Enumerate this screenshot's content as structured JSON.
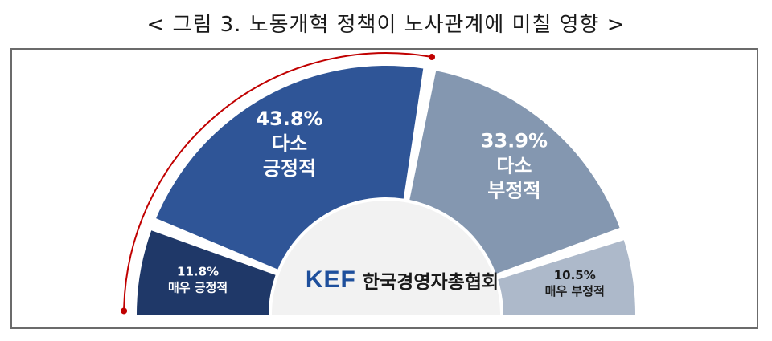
{
  "figure": {
    "title": "< 그림 3. 노동개혁 정책이 노사관계에 미칠 영향 >"
  },
  "logo": {
    "mark": "KEF",
    "text": "한국경영자총협회"
  },
  "chart_data": {
    "type": "pie",
    "shape": "semicircle-donut",
    "order": "left-to-right",
    "slices": [
      {
        "value": 11.8,
        "value_label": "11.8%",
        "label_lines": [
          "매우 긍정적"
        ],
        "color": "#1f3868",
        "label_size": "small"
      },
      {
        "value": 43.8,
        "value_label": "43.8%",
        "label_lines": [
          "다소",
          "긍정적"
        ],
        "color": "#2f5597",
        "label_size": "large"
      },
      {
        "value": 33.9,
        "value_label": "33.9%",
        "label_lines": [
          "다소",
          "부정적"
        ],
        "color": "#8497b0",
        "label_size": "large"
      },
      {
        "value": 10.5,
        "value_label": "10.5%",
        "label_lines": [
          "매우 부정적"
        ],
        "color": "#adb9ca",
        "label_size": "small"
      }
    ],
    "inner_color": "#f2f2f2",
    "highlight_arc_color": "#c00000",
    "highlight_arc_span": "positive slices"
  }
}
